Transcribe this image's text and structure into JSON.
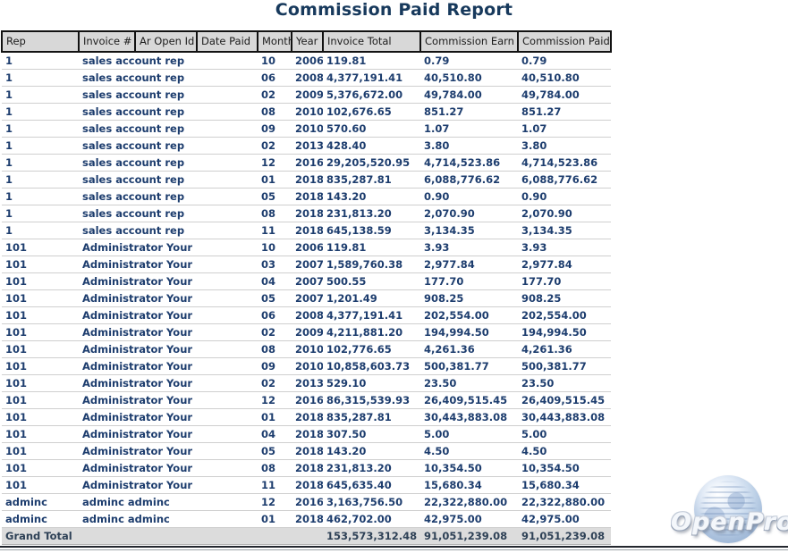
{
  "page": {
    "title": "Commission Paid Report",
    "logo_text": "OpenPro"
  },
  "colors": {
    "title_text": "#17395c",
    "data_text": "#1d3d6e",
    "header_bg": "#d8d8d8",
    "header_border": "#121212",
    "total_row_bg": "#dcdcdc",
    "row_separator": "#cfcfcf"
  },
  "table": {
    "columns": [
      "Rep",
      "Invoice #",
      "Ar Open Id",
      "Date Paid",
      "Month",
      "Year",
      "Invoice Total",
      "Commission Earn",
      "Commission Paid"
    ],
    "rows": [
      {
        "rep": "1",
        "name": "sales account rep",
        "month": "10",
        "year": "2006",
        "invoice_total": "119.81",
        "commission_earn": "0.79",
        "commission_paid": "0.79"
      },
      {
        "rep": "1",
        "name": "sales account rep",
        "month": "06",
        "year": "2008",
        "invoice_total": "4,377,191.41",
        "commission_earn": "40,510.80",
        "commission_paid": "40,510.80"
      },
      {
        "rep": "1",
        "name": "sales account rep",
        "month": "02",
        "year": "2009",
        "invoice_total": "5,376,672.00",
        "commission_earn": "49,784.00",
        "commission_paid": "49,784.00"
      },
      {
        "rep": "1",
        "name": "sales account rep",
        "month": "08",
        "year": "2010",
        "invoice_total": "102,676.65",
        "commission_earn": "851.27",
        "commission_paid": "851.27"
      },
      {
        "rep": "1",
        "name": "sales account rep",
        "month": "09",
        "year": "2010",
        "invoice_total": "570.60",
        "commission_earn": "1.07",
        "commission_paid": "1.07"
      },
      {
        "rep": "1",
        "name": "sales account rep",
        "month": "02",
        "year": "2013",
        "invoice_total": "428.40",
        "commission_earn": "3.80",
        "commission_paid": "3.80"
      },
      {
        "rep": "1",
        "name": "sales account rep",
        "month": "12",
        "year": "2016",
        "invoice_total": "29,205,520.95",
        "commission_earn": "4,714,523.86",
        "commission_paid": "4,714,523.86"
      },
      {
        "rep": "1",
        "name": "sales account rep",
        "month": "01",
        "year": "2018",
        "invoice_total": "835,287.81",
        "commission_earn": "6,088,776.62",
        "commission_paid": "6,088,776.62"
      },
      {
        "rep": "1",
        "name": "sales account rep",
        "month": "05",
        "year": "2018",
        "invoice_total": "143.20",
        "commission_earn": "0.90",
        "commission_paid": "0.90"
      },
      {
        "rep": "1",
        "name": "sales account rep",
        "month": "08",
        "year": "2018",
        "invoice_total": "231,813.20",
        "commission_earn": "2,070.90",
        "commission_paid": "2,070.90"
      },
      {
        "rep": "1",
        "name": "sales account rep",
        "month": "11",
        "year": "2018",
        "invoice_total": "645,138.59",
        "commission_earn": "3,134.35",
        "commission_paid": "3,134.35"
      },
      {
        "rep": "101",
        "name": "Administrator Your",
        "month": "10",
        "year": "2006",
        "invoice_total": "119.81",
        "commission_earn": "3.93",
        "commission_paid": "3.93"
      },
      {
        "rep": "101",
        "name": "Administrator Your",
        "month": "03",
        "year": "2007",
        "invoice_total": "1,589,760.38",
        "commission_earn": "2,977.84",
        "commission_paid": "2,977.84"
      },
      {
        "rep": "101",
        "name": "Administrator Your",
        "month": "04",
        "year": "2007",
        "invoice_total": "500.55",
        "commission_earn": "177.70",
        "commission_paid": "177.70"
      },
      {
        "rep": "101",
        "name": "Administrator Your",
        "month": "05",
        "year": "2007",
        "invoice_total": "1,201.49",
        "commission_earn": "908.25",
        "commission_paid": "908.25"
      },
      {
        "rep": "101",
        "name": "Administrator Your",
        "month": "06",
        "year": "2008",
        "invoice_total": "4,377,191.41",
        "commission_earn": "202,554.00",
        "commission_paid": "202,554.00"
      },
      {
        "rep": "101",
        "name": "Administrator Your",
        "month": "02",
        "year": "2009",
        "invoice_total": "4,211,881.20",
        "commission_earn": "194,994.50",
        "commission_paid": "194,994.50"
      },
      {
        "rep": "101",
        "name": "Administrator Your",
        "month": "08",
        "year": "2010",
        "invoice_total": "102,776.65",
        "commission_earn": "4,261.36",
        "commission_paid": "4,261.36"
      },
      {
        "rep": "101",
        "name": "Administrator Your",
        "month": "09",
        "year": "2010",
        "invoice_total": "10,858,603.73",
        "commission_earn": "500,381.77",
        "commission_paid": "500,381.77"
      },
      {
        "rep": "101",
        "name": "Administrator Your",
        "month": "02",
        "year": "2013",
        "invoice_total": "529.10",
        "commission_earn": "23.50",
        "commission_paid": "23.50"
      },
      {
        "rep": "101",
        "name": "Administrator Your",
        "month": "12",
        "year": "2016",
        "invoice_total": "86,315,539.93",
        "commission_earn": "26,409,515.45",
        "commission_paid": "26,409,515.45"
      },
      {
        "rep": "101",
        "name": "Administrator Your",
        "month": "01",
        "year": "2018",
        "invoice_total": "835,287.81",
        "commission_earn": "30,443,883.08",
        "commission_paid": "30,443,883.08"
      },
      {
        "rep": "101",
        "name": "Administrator Your",
        "month": "04",
        "year": "2018",
        "invoice_total": "307.50",
        "commission_earn": "5.00",
        "commission_paid": "5.00"
      },
      {
        "rep": "101",
        "name": "Administrator Your",
        "month": "05",
        "year": "2018",
        "invoice_total": "143.20",
        "commission_earn": "4.50",
        "commission_paid": "4.50"
      },
      {
        "rep": "101",
        "name": "Administrator Your",
        "month": "08",
        "year": "2018",
        "invoice_total": "231,813.20",
        "commission_earn": "10,354.50",
        "commission_paid": "10,354.50"
      },
      {
        "rep": "101",
        "name": "Administrator Your",
        "month": "11",
        "year": "2018",
        "invoice_total": "645,635.40",
        "commission_earn": "15,680.34",
        "commission_paid": "15,680.34"
      },
      {
        "rep": "adminc",
        "name": "adminc adminc",
        "month": "12",
        "year": "2016",
        "invoice_total": "3,163,756.50",
        "commission_earn": "22,322,880.00",
        "commission_paid": "22,322,880.00"
      },
      {
        "rep": "adminc",
        "name": "adminc adminc",
        "month": "01",
        "year": "2018",
        "invoice_total": "462,702.00",
        "commission_earn": "42,975.00",
        "commission_paid": "42,975.00"
      }
    ],
    "grand_total": {
      "label": "Grand Total",
      "invoice_total": "153,573,312.48",
      "commission_earn": "91,051,239.08",
      "commission_paid": "91,051,239.08"
    }
  }
}
